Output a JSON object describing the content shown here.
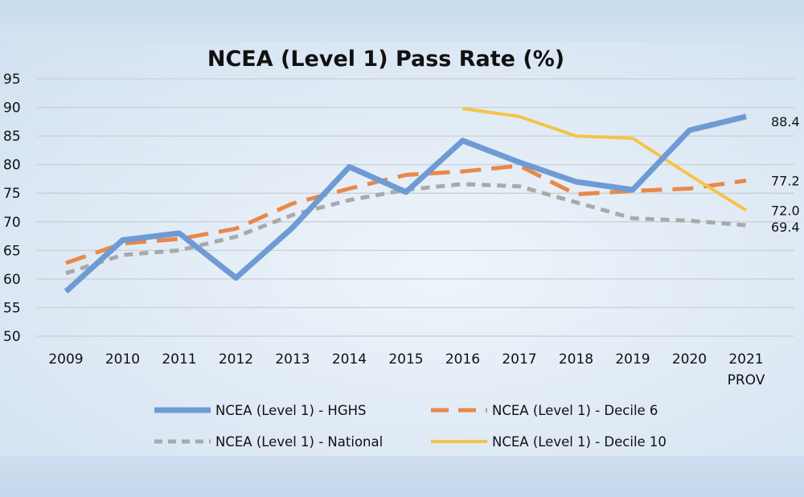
{
  "chart_data": {
    "type": "line",
    "title": "NCEA (Level 1) Pass Rate (%)",
    "xlabel": "",
    "ylabel": "",
    "categories": [
      "2009",
      "2010",
      "2011",
      "2012",
      "2013",
      "2014",
      "2015",
      "2016",
      "2017",
      "2018",
      "2019",
      "2020",
      "2021"
    ],
    "category_sublabels": [
      "",
      "",
      "",
      "",
      "",
      "",
      "",
      "",
      "",
      "",
      "",
      "",
      "PROV"
    ],
    "ylim": [
      50,
      95
    ],
    "yticks": [
      "50",
      "55",
      "60",
      "65",
      "70",
      "75",
      "80",
      "85",
      "90",
      "95"
    ],
    "grid": true,
    "legend_position": "bottom",
    "series": [
      {
        "name": "NCEA (Level 1) - HGHS",
        "color": "#6e9bd4",
        "style": "solid",
        "values": [
          57.8,
          66.8,
          68.0,
          60.2,
          69.0,
          79.6,
          75.2,
          84.2,
          80.4,
          77.0,
          75.6,
          86.0,
          88.4
        ],
        "end_label": "88.4"
      },
      {
        "name": "NCEA (Level 1) - Decile 6",
        "color": "#e8884a",
        "style": "long-dash",
        "values": [
          62.8,
          66.2,
          67.0,
          68.8,
          73.2,
          75.8,
          78.2,
          78.8,
          79.8,
          74.8,
          75.4,
          75.8,
          77.2
        ],
        "end_label": "77.2"
      },
      {
        "name": "NCEA (Level 1) - National",
        "color": "#a9a9a9",
        "style": "short-dash",
        "values": [
          61.0,
          64.2,
          65.0,
          67.4,
          71.2,
          73.8,
          75.6,
          76.6,
          76.2,
          73.4,
          70.6,
          70.2,
          69.4
        ],
        "end_label": "69.4"
      },
      {
        "name": "NCEA (Level 1) - Decile 10",
        "color": "#f5c446",
        "style": "solid",
        "values": [
          null,
          null,
          null,
          null,
          null,
          null,
          null,
          89.8,
          88.4,
          85.0,
          84.6,
          78.2,
          72.0
        ],
        "end_label": "72.0"
      }
    ]
  }
}
